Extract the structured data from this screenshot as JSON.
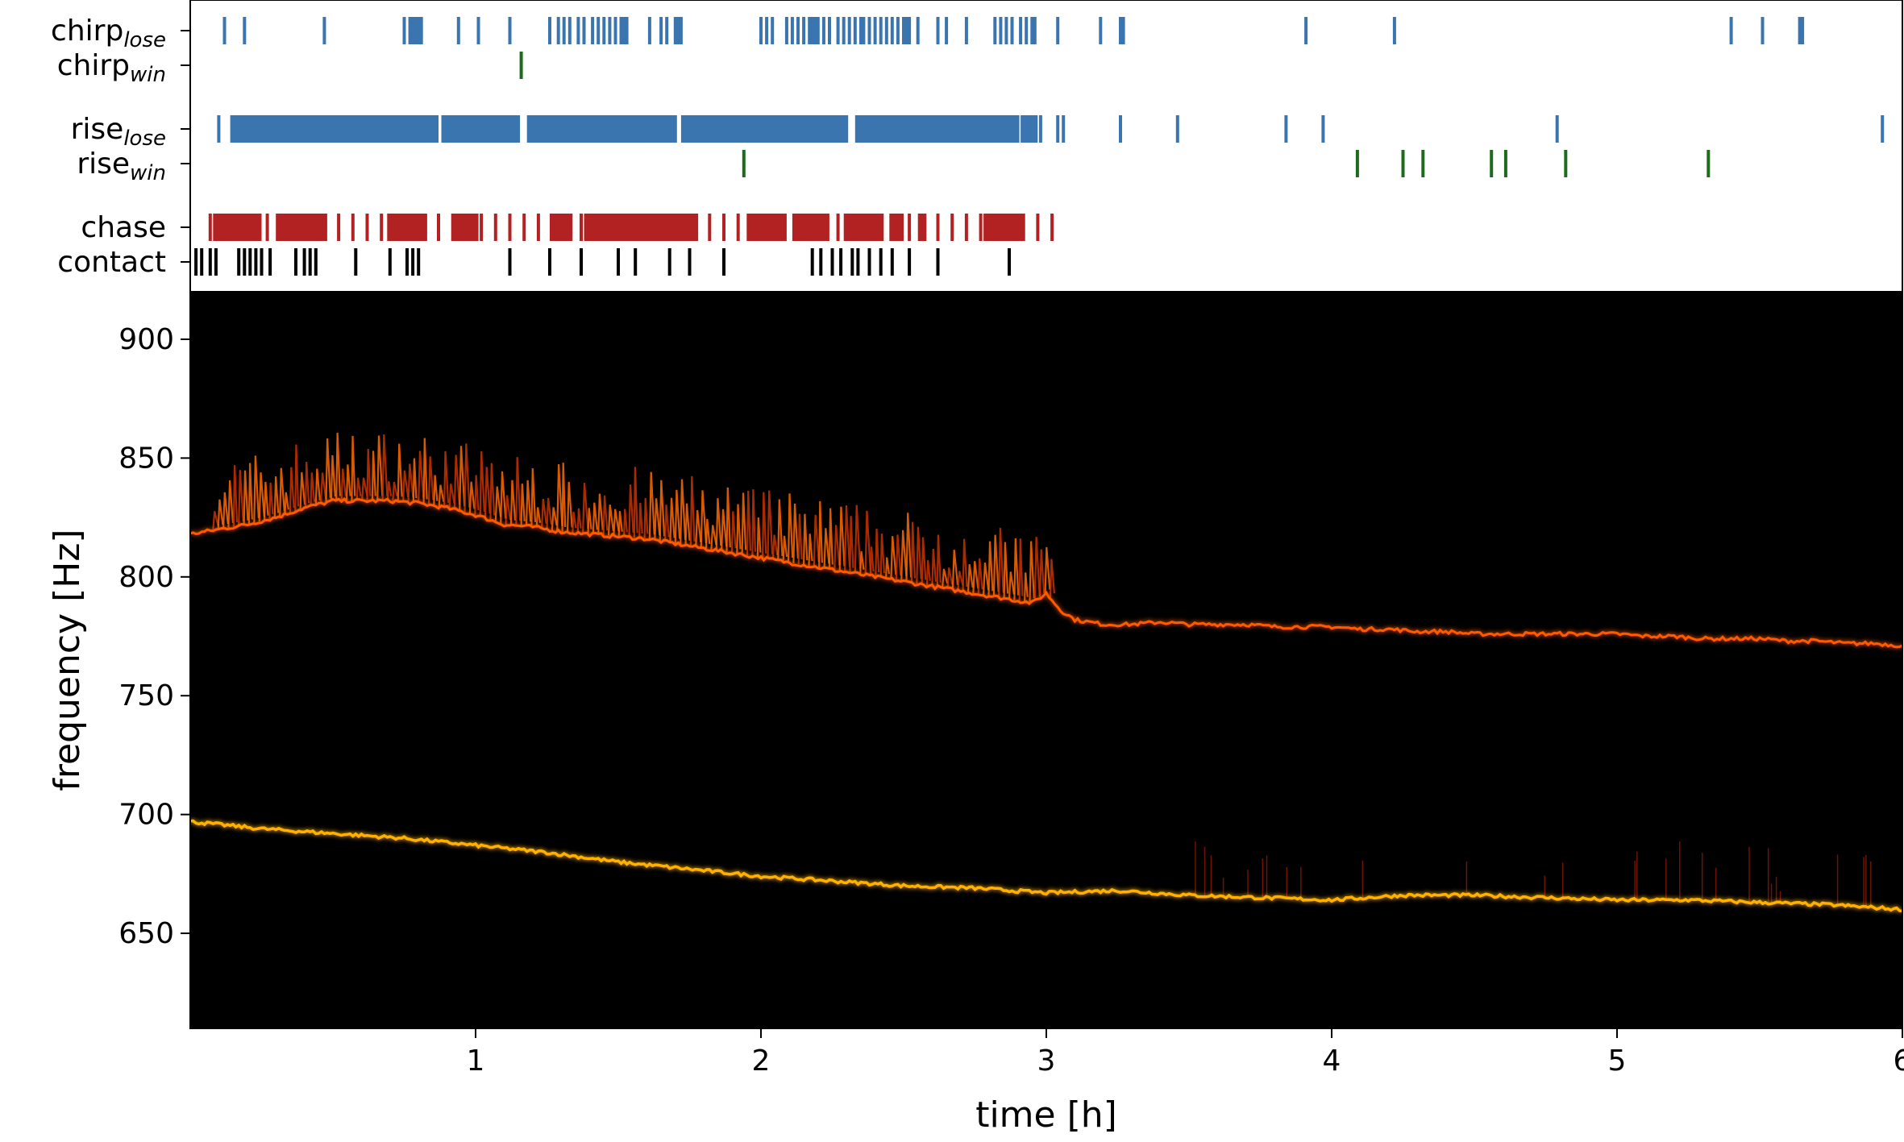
{
  "chart_data": [
    {
      "type": "event-raster",
      "rows": [
        {
          "label": "chirp",
          "subscript": "lose",
          "color": "#3b75af",
          "events": [
            0.12,
            0.19,
            0.47,
            0.75,
            0.77,
            0.78,
            0.79,
            0.8,
            0.81,
            0.94,
            1.01,
            1.12,
            1.26,
            1.29,
            1.31,
            1.33,
            1.36,
            1.38,
            1.41,
            1.43,
            1.45,
            1.47,
            1.49,
            1.51,
            1.52,
            1.53,
            1.61,
            1.65,
            1.67,
            1.7,
            1.71,
            1.72,
            2.0,
            2.02,
            2.04,
            2.09,
            2.11,
            2.13,
            2.15,
            2.17,
            2.18,
            2.19,
            2.2,
            2.22,
            2.24,
            2.27,
            2.29,
            2.31,
            2.33,
            2.35,
            2.36,
            2.38,
            2.4,
            2.42,
            2.44,
            2.46,
            2.48,
            2.5,
            2.51,
            2.52,
            2.55,
            2.62,
            2.65,
            2.72,
            2.82,
            2.84,
            2.86,
            2.88,
            2.91,
            2.93,
            2.95,
            2.96,
            3.04,
            3.19,
            3.26,
            3.27,
            3.91,
            4.22,
            5.4,
            5.51,
            5.64,
            5.65
          ]
        },
        {
          "label": "chirp",
          "subscript": "win",
          "color": "#1e6b1e",
          "events": [
            1.16
          ]
        },
        {
          "label": "rise",
          "subscript": "lose",
          "color": "#3b75af",
          "events": [
            0.1,
            0.15,
            0.2,
            0.25,
            0.3,
            0.35,
            0.4,
            0.45,
            0.5,
            0.55,
            0.6,
            0.65,
            0.7,
            0.75,
            0.8,
            0.85,
            0.9,
            0.95,
            1.0,
            1.05,
            1.1,
            1.15,
            1.2,
            1.25,
            1.3,
            1.35,
            1.4,
            1.45,
            1.5,
            1.55,
            1.6,
            1.65,
            1.7,
            1.75,
            1.8,
            1.85,
            1.9,
            1.95,
            2.0,
            2.05,
            2.1,
            2.15,
            2.2,
            2.25,
            2.3,
            2.35,
            2.4,
            2.45,
            2.5,
            2.55,
            2.6,
            2.65,
            2.7,
            2.75,
            2.8,
            2.85,
            2.9,
            2.95,
            2.98,
            3.04,
            3.06,
            3.26,
            3.46,
            3.84,
            3.97,
            4.79,
            5.93
          ],
          "dense_spans": [
            [
              0.14,
              0.3
            ],
            [
              0.3,
              0.87
            ],
            [
              0.88,
              1.15
            ],
            [
              1.18,
              1.7
            ],
            [
              1.72,
              2.3
            ],
            [
              2.33,
              2.9
            ],
            [
              2.91,
              2.97
            ]
          ]
        },
        {
          "label": "rise",
          "subscript": "win",
          "color": "#1e6b1e",
          "events": [
            1.94,
            4.09,
            4.25,
            4.32,
            4.56,
            4.61,
            4.82,
            5.32
          ]
        },
        {
          "label": "chase",
          "subscript": "",
          "color": "#b22222",
          "events": [
            0.07,
            0.12,
            0.17,
            0.22,
            0.27,
            0.32,
            0.37,
            0.42,
            0.47,
            0.52,
            0.57,
            0.62,
            0.67,
            0.72,
            0.77,
            0.82,
            0.87,
            0.92,
            0.97,
            1.02,
            1.07,
            1.12,
            1.17,
            1.22,
            1.27,
            1.32,
            1.37,
            1.42,
            1.47,
            1.52,
            1.57,
            1.62,
            1.67,
            1.72,
            1.77,
            1.82,
            1.87,
            1.92,
            1.97,
            2.02,
            2.07,
            2.12,
            2.17,
            2.22,
            2.27,
            2.32,
            2.37,
            2.42,
            2.47,
            2.52,
            2.57,
            2.62,
            2.67,
            2.72,
            2.77,
            2.82,
            2.87,
            2.92,
            2.97,
            3.02
          ],
          "dense_spans": [
            [
              0.08,
              0.25
            ],
            [
              0.3,
              0.48
            ],
            [
              0.69,
              0.83
            ],
            [
              0.92,
              1.01
            ],
            [
              1.26,
              1.34
            ],
            [
              1.38,
              1.78
            ],
            [
              1.95,
              2.09
            ],
            [
              2.11,
              2.24
            ],
            [
              2.29,
              2.43
            ],
            [
              2.45,
              2.5
            ],
            [
              2.55,
              2.58
            ],
            [
              2.78,
              2.92
            ]
          ]
        },
        {
          "label": "contact",
          "subscript": "",
          "color": "#000000",
          "events": [
            0.02,
            0.04,
            0.07,
            0.09,
            0.17,
            0.19,
            0.21,
            0.23,
            0.25,
            0.28,
            0.37,
            0.4,
            0.42,
            0.44,
            0.58,
            0.7,
            0.76,
            0.78,
            0.8,
            1.12,
            1.26,
            1.37,
            1.5,
            1.56,
            1.68,
            1.75,
            1.87,
            2.18,
            2.21,
            2.25,
            2.28,
            2.32,
            2.34,
            2.38,
            2.42,
            2.46,
            2.52,
            2.62,
            2.87
          ]
        }
      ]
    },
    {
      "type": "heatmap",
      "subtype": "spectrogram",
      "xlabel": "time [h]",
      "ylabel": "frequency [Hz]",
      "xlim": [
        0,
        6
      ],
      "ylim": [
        610,
        920
      ],
      "xticks": [
        1,
        2,
        3,
        4,
        5,
        6
      ],
      "yticks": [
        650,
        700,
        750,
        800,
        850,
        900
      ],
      "background": "#000000",
      "colormap": "hot",
      "series": [
        {
          "name": "",
          "x": [
            0.0,
            0.1,
            0.2,
            0.3,
            0.4,
            0.5,
            0.6,
            0.7,
            0.8,
            0.9,
            1.0,
            1.1,
            1.2,
            1.3,
            1.4,
            1.5,
            1.6,
            1.7,
            1.8,
            1.9,
            2.0,
            2.1,
            2.2,
            2.3,
            2.4,
            2.5,
            2.6,
            2.7,
            2.8,
            2.9,
            2.95,
            3.0,
            3.05,
            3.1,
            3.2,
            3.3,
            3.4,
            3.5,
            3.6,
            3.7,
            3.8,
            3.9,
            4.0,
            4.1,
            4.2,
            4.3,
            4.4,
            4.5,
            4.6,
            4.7,
            4.8,
            4.9,
            5.0,
            5.1,
            5.2,
            5.3,
            5.4,
            5.5,
            5.6,
            5.7,
            5.8,
            5.9,
            6.0
          ],
          "y": [
            818,
            820,
            822,
            825,
            829,
            832,
            832,
            832,
            831,
            829,
            826,
            822,
            821,
            819,
            818,
            817,
            816,
            814,
            812,
            810,
            808,
            806,
            804,
            802,
            800,
            798,
            796,
            794,
            792,
            790,
            789,
            793,
            786,
            782,
            780,
            780,
            781,
            780,
            780,
            780,
            779,
            779,
            779,
            778,
            778,
            777,
            777,
            776,
            776,
            776,
            776,
            776,
            776,
            775,
            775,
            774,
            774,
            774,
            773,
            773,
            772,
            772,
            771
          ]
        },
        {
          "name": "",
          "x": [
            0.0,
            0.25,
            0.5,
            0.75,
            1.0,
            1.25,
            1.5,
            1.75,
            2.0,
            2.25,
            2.5,
            2.75,
            3.0,
            3.25,
            3.5,
            3.75,
            4.0,
            4.25,
            4.5,
            4.75,
            5.0,
            5.25,
            5.5,
            5.75,
            6.0
          ],
          "y": [
            697,
            694,
            692,
            690,
            687,
            684,
            680,
            677,
            674,
            672,
            670,
            669,
            667,
            668,
            666,
            665,
            664,
            666,
            666,
            665,
            664,
            664,
            663,
            662,
            660
          ]
        }
      ]
    }
  ]
}
